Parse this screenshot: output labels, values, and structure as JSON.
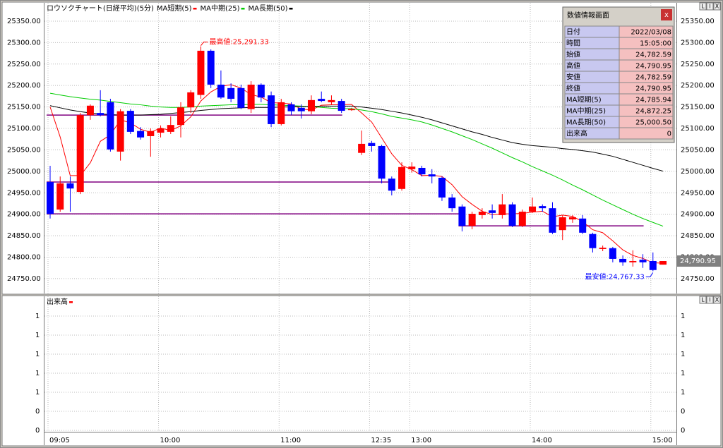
{
  "chart_data": [
    {
      "type": "candlestick",
      "title": "ロウソクチャート(日経平均)(5分)",
      "categories": [
        "09:05",
        null,
        null,
        null,
        null,
        null,
        null,
        null,
        null,
        null,
        null,
        "10:00",
        null,
        null,
        null,
        null,
        null,
        null,
        null,
        null,
        null,
        null,
        null,
        "11:00",
        null,
        null,
        null,
        null,
        null,
        null,
        null,
        null,
        "12:35",
        null,
        null,
        null,
        "13:00",
        null,
        null,
        null,
        null,
        null,
        null,
        null,
        null,
        null,
        null,
        null,
        "14:00",
        null,
        null,
        null,
        null,
        null,
        null,
        null,
        null,
        null,
        null,
        null,
        "15:00",
        null
      ],
      "open": [
        24975,
        24911,
        24972,
        24952,
        25131,
        25136,
        25161,
        25046,
        25141,
        25094,
        25082,
        25090,
        25092,
        25108,
        25149,
        25178,
        25281,
        25202,
        25194,
        25194,
        25145,
        25202,
        25177,
        25110,
        25156,
        25148,
        25140,
        25169,
        25161,
        25164,
        25143,
        25043,
        25066,
        25059,
        24983,
        24959,
        25005,
        25008,
        24993,
        24985,
        24939,
        24918,
        24873,
        24898,
        24909,
        24898,
        24923,
        24873,
        24906,
        24919,
        24914,
        24863,
        24888,
        24890,
        24854,
        24819,
        24821,
        24796,
        24788,
        24794,
        24791,
        24782.59
      ],
      "high": [
        25013,
        24988,
        24988,
        25136,
        25156,
        25189,
        25169,
        25145,
        25145,
        25103,
        25100,
        25107,
        25128,
        25161,
        25189,
        25291.33,
        25284,
        25235,
        25205,
        25202,
        25210,
        25205,
        25186,
        25169,
        25161,
        25156,
        25177,
        25186,
        25177,
        25169,
        25148,
        25095,
        25071,
        25062,
        24988,
        25021,
        25021,
        25013,
        25005,
        24988,
        24947,
        24923,
        24906,
        24914,
        24923,
        24947,
        24928,
        24911,
        24939,
        24923,
        24928,
        24898,
        24898,
        24898,
        24857,
        24827,
        24824,
        24804,
        24816,
        24807,
        24811,
        24790.95
      ],
      "low": [
        24890,
        24906,
        24906,
        24947,
        25120,
        25128,
        25046,
        25025,
        25087,
        25074,
        25034,
        25079,
        25087,
        25079,
        25136,
        25169,
        25194,
        25169,
        25161,
        25145,
        25136,
        25161,
        25103,
        25107,
        25131,
        25123,
        25133,
        25161,
        25156,
        25136,
        25141,
        25038,
        25046,
        24972,
        24944,
        24955,
        24997,
        24988,
        24972,
        24931,
        24906,
        24860,
        24865,
        24890,
        24890,
        24890,
        24870,
        24870,
        24903,
        24906,
        24854,
        24840,
        24880,
        24854,
        24811,
        24814,
        24788,
        24780,
        24778,
        24775,
        24767.33,
        24782.59
      ],
      "close": [
        24901,
        24972,
        24960,
        25131,
        25153,
        25131,
        25051,
        25140,
        25092,
        25079,
        25094,
        25100,
        25108,
        25149,
        25184,
        25281,
        25202,
        25172,
        25169,
        25148,
        25202,
        25172,
        25110,
        25161,
        25140,
        25140,
        25166,
        25164,
        25166,
        25141,
        25145,
        25064,
        25059,
        24983,
        24955,
        25010,
        25011,
        24993,
        24988,
        24939,
        24914,
        24873,
        24901,
        24906,
        24903,
        24923,
        24873,
        24906,
        24918,
        24914,
        24857,
        24893,
        24893,
        24857,
        24821,
        24822,
        24796,
        24788,
        24791,
        24788,
        24770,
        24790.95
      ],
      "up_color": "#ff0000",
      "down_color": "#0000ff",
      "lines": [
        {
          "name": "MA短期(5)",
          "color": "#ff0000",
          "values": [
            25150,
            25080,
            24990,
            24990,
            25020,
            25070,
            25085,
            25120,
            25113,
            25098,
            25091,
            25101,
            25095,
            25106,
            25127,
            25164,
            25185,
            25198,
            25202,
            25194,
            25179,
            25173,
            25160,
            25159,
            25157,
            25145,
            25143,
            25154,
            25155,
            25155,
            25156,
            25136,
            25115,
            25078,
            25041,
            25014,
            25004,
            24990,
            24991,
            24988,
            24969,
            24941,
            24923,
            24907,
            24899,
            24901,
            24901,
            24902,
            24905,
            24907,
            24894,
            24898,
            24895,
            24883,
            24864,
            24857,
            24838,
            24817,
            24804,
            24797,
            24787,
            24785.94
          ]
        },
        {
          "name": "MA中期(25)",
          "color": "#00cc00",
          "values": [
            25182,
            25178,
            25174,
            25171,
            25168,
            25166,
            25163,
            25160,
            25157,
            25155,
            25152,
            25150,
            25149,
            25149,
            25150,
            25152,
            25153,
            25154,
            25155,
            25155,
            25156,
            25156,
            25155,
            25154,
            25153,
            25152,
            25151,
            25149,
            25147,
            25146,
            25146,
            25143,
            25139,
            25134,
            25128,
            25124,
            25120,
            25115,
            25108,
            25100,
            25092,
            25083,
            25074,
            25064,
            25054,
            25043,
            25032,
            25022,
            25011,
            25001,
            24991,
            24980,
            24968,
            24957,
            24945,
            24933,
            24922,
            24911,
            24900,
            24890,
            24881,
            24872.25
          ]
        },
        {
          "name": "MA長期(50)",
          "color": "#000000",
          "values": [
            25153,
            25148,
            25143,
            25139,
            25136,
            25134,
            25132,
            25131,
            25131,
            25131,
            25132,
            25133,
            25135,
            25137,
            25139,
            25142,
            25144,
            25146,
            25147,
            25148,
            25149,
            25149,
            25149,
            25150,
            25150,
            25151,
            25151,
            25152,
            25152,
            25152,
            25152,
            25150,
            25147,
            25144,
            25140,
            25136,
            25131,
            25126,
            25120,
            25113,
            25106,
            25099,
            25092,
            25086,
            25079,
            25073,
            25067,
            25063,
            25060,
            25058,
            25056,
            25053,
            25051,
            25048,
            25045,
            25040,
            25035,
            25028,
            25021,
            25014,
            25007,
            25000.5
          ]
        }
      ],
      "levels": [
        {
          "value": 25131,
          "start": 0,
          "end": 29
        },
        {
          "value": 24975,
          "start": 0,
          "end": 34
        },
        {
          "value": 24901,
          "start": 0,
          "end": 41
        },
        {
          "value": 24873,
          "start": 41,
          "end": 59
        }
      ],
      "level_color": "#800080",
      "annotations": [
        {
          "label": "最高値:25,291.33",
          "value": 25291.33,
          "index": 15,
          "color": "#ff0000"
        },
        {
          "label": "最安値:24,767.33",
          "value": 24767.33,
          "index": 60,
          "color": "#0000ff"
        }
      ],
      "last_price": {
        "value": 24790.95,
        "label": "24,790.95"
      },
      "ylim": [
        24717,
        25391
      ],
      "yticks": [
        {
          "value": 25350,
          "label": "25350.00"
        },
        {
          "value": 25300,
          "label": "25300.00"
        },
        {
          "value": 25250,
          "label": "25250.00"
        },
        {
          "value": 25200,
          "label": "25200.00"
        },
        {
          "value": 25150,
          "label": "25150.00"
        },
        {
          "value": 25100,
          "label": "25100.00"
        },
        {
          "value": 25050,
          "label": "25050.00"
        },
        {
          "value": 25000,
          "label": "25000.00"
        },
        {
          "value": 24950,
          "label": "24950.00"
        },
        {
          "value": 24900,
          "label": "24900.00"
        },
        {
          "value": 24850,
          "label": "24850.00"
        },
        {
          "value": 24800,
          "label": "24800.00"
        },
        {
          "value": 24750,
          "label": "24750.00"
        }
      ],
      "grid": true
    },
    {
      "type": "bar",
      "series": [
        {
          "name": "出来高",
          "color": "#ff0000"
        }
      ],
      "ylim": [
        0.2,
        1.6
      ],
      "yticks": [
        {
          "value": 1.4,
          "label": "1"
        },
        {
          "value": 1.2,
          "label": "1"
        },
        {
          "value": 1.0,
          "label": "1"
        },
        {
          "value": 0.8,
          "label": "1"
        },
        {
          "value": 0.6,
          "label": "1"
        },
        {
          "value": 0.4,
          "label": "0"
        },
        {
          "value": 0.2,
          "label": "0"
        }
      ],
      "grid": true
    }
  ],
  "buttons": [
    "L",
    "I",
    "X"
  ],
  "info_panel": {
    "title": "数値情報画面",
    "close": "x",
    "rows": [
      [
        "日付",
        "2022/03/08"
      ],
      [
        "時間",
        "15:05:00"
      ],
      [
        "始値",
        "24,782.59"
      ],
      [
        "高値",
        "24,790.95"
      ],
      [
        "安値",
        "24,782.59"
      ],
      [
        "終値",
        "24,790.95"
      ],
      [
        "MA短期(5)",
        "24,785.94"
      ],
      [
        "MA中期(25)",
        "24,872.25"
      ],
      [
        "MA長期(50)",
        "25,000.50"
      ],
      [
        "出来高",
        "0"
      ]
    ]
  }
}
